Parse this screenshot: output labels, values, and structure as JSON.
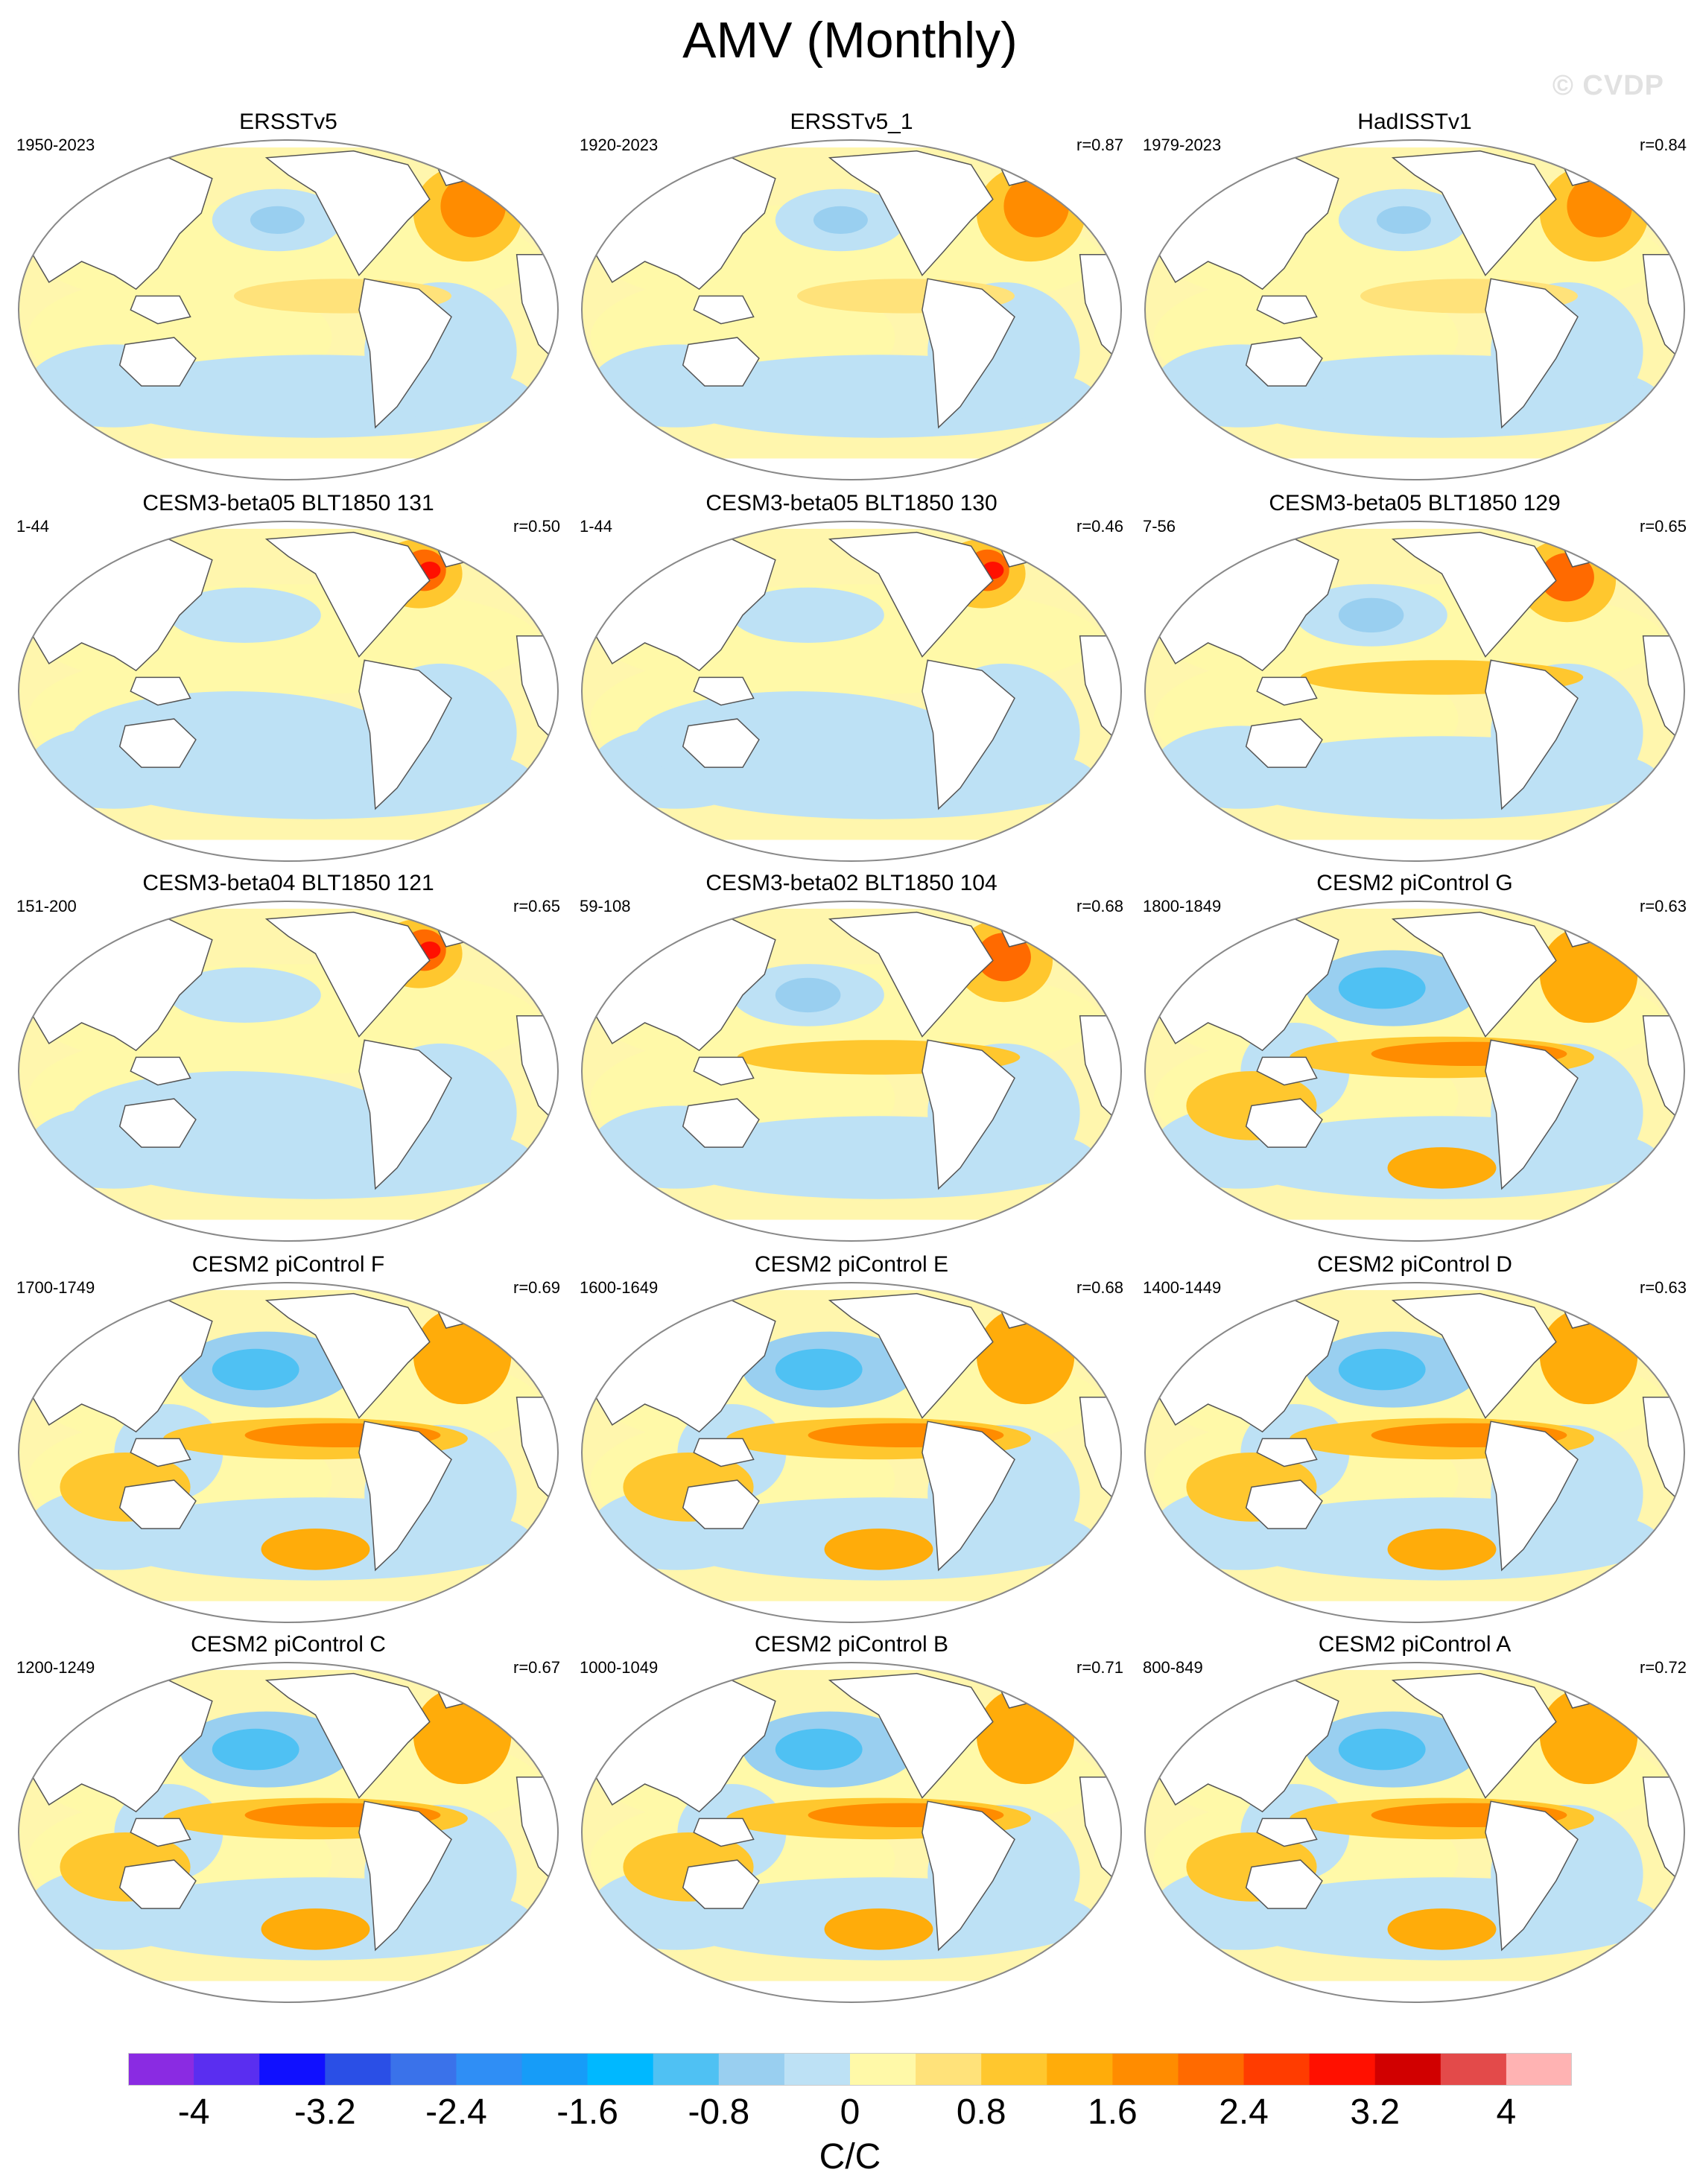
{
  "title": "AMV (Monthly)",
  "watermark": "© CVDP",
  "panels": [
    {
      "title": "ERSSTv5",
      "period": "1950-2023",
      "r": "",
      "pattern": "obs"
    },
    {
      "title": "ERSSTv5_1",
      "period": "1920-2023",
      "r": "r=0.87",
      "pattern": "obs"
    },
    {
      "title": "HadISSTv1",
      "period": "1979-2023",
      "r": "r=0.84",
      "pattern": "obs"
    },
    {
      "title": "CESM3-beta05 BLT1850 131",
      "period": "1-44",
      "r": "r=0.50",
      "pattern": "weak"
    },
    {
      "title": "CESM3-beta05 BLT1850 130",
      "period": "1-44",
      "r": "r=0.46",
      "pattern": "weak"
    },
    {
      "title": "CESM3-beta05 BLT1850 129",
      "period": "7-56",
      "r": "r=0.65",
      "pattern": "mid"
    },
    {
      "title": "CESM3-beta04 BLT1850 121",
      "period": "151-200",
      "r": "r=0.65",
      "pattern": "weak"
    },
    {
      "title": "CESM3-beta02 BLT1850 104",
      "period": "59-108",
      "r": "r=0.68",
      "pattern": "mid"
    },
    {
      "title": "CESM2 piControl G",
      "period": "1800-1849",
      "r": "r=0.63",
      "pattern": "strong"
    },
    {
      "title": "CESM2 piControl F",
      "period": "1700-1749",
      "r": "r=0.69",
      "pattern": "strong"
    },
    {
      "title": "CESM2 piControl E",
      "period": "1600-1649",
      "r": "r=0.68",
      "pattern": "strong"
    },
    {
      "title": "CESM2 piControl D",
      "period": "1400-1449",
      "r": "r=0.63",
      "pattern": "strong"
    },
    {
      "title": "CESM2 piControl C",
      "period": "1200-1249",
      "r": "r=0.67",
      "pattern": "strong"
    },
    {
      "title": "CESM2 piControl B",
      "period": "1000-1049",
      "r": "r=0.71",
      "pattern": "strong"
    },
    {
      "title": "CESM2 piControl A",
      "period": "800-849",
      "r": "r=0.72",
      "pattern": "strong"
    }
  ],
  "colorbar": {
    "colors": [
      "#8a2be2",
      "#5a2ef0",
      "#1010ff",
      "#2a4fe6",
      "#3a72ea",
      "#2f8ef5",
      "#169cf8",
      "#00b8ff",
      "#4fc1f3",
      "#99cff0",
      "#bde1f5",
      "#fff9a8",
      "#ffe27a",
      "#ffc72e",
      "#ffac0a",
      "#ff8c00",
      "#ff6a00",
      "#ff3c00",
      "#ff1000",
      "#d10000",
      "#e34a4a",
      "#ffb3b3"
    ],
    "labels": [
      "-4",
      "-3.2",
      "-2.4",
      "-1.6",
      "-0.8",
      "0",
      "0.8",
      "1.6",
      "2.4",
      "3.2",
      "4"
    ],
    "units": "C/C"
  }
}
